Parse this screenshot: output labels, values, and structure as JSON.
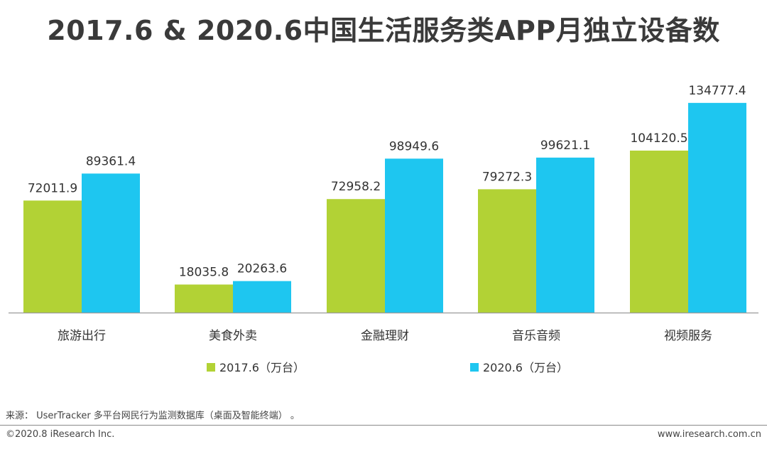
{
  "header": {
    "title": "2017.6 & 2020.6中国生活服务类APP月独立设备数"
  },
  "chart_data": {
    "type": "bar",
    "categories": [
      "旅游出行",
      "美食外卖",
      "金融理财",
      "音乐音频",
      "视频服务"
    ],
    "series": [
      {
        "name": "2017.6（万台）",
        "color": "#b2d235",
        "values": [
          72011.9,
          18035.8,
          72958.2,
          79272.3,
          104120.5
        ]
      },
      {
        "name": "2020.6（万台）",
        "color": "#1ec6f0",
        "values": [
          89361.4,
          20263.6,
          98949.6,
          99621.1,
          134777.4
        ]
      }
    ],
    "value_labels": [
      [
        "72011.9",
        "18035.8",
        "72958.2",
        "79272.3",
        "104120.5"
      ],
      [
        "89361.4",
        "20263.6",
        "98949.6",
        "99621.1",
        "134777.4"
      ]
    ],
    "ylim": [
      0,
      150000
    ],
    "grid": false,
    "legend_position": "bottom"
  },
  "footer": {
    "source": "来源： UserTracker 多平台网民行为监测数据库（桌面及智能终端） 。",
    "copyright": "©2020.8 iResearch Inc.",
    "website": "www.iresearch.com.cn"
  }
}
